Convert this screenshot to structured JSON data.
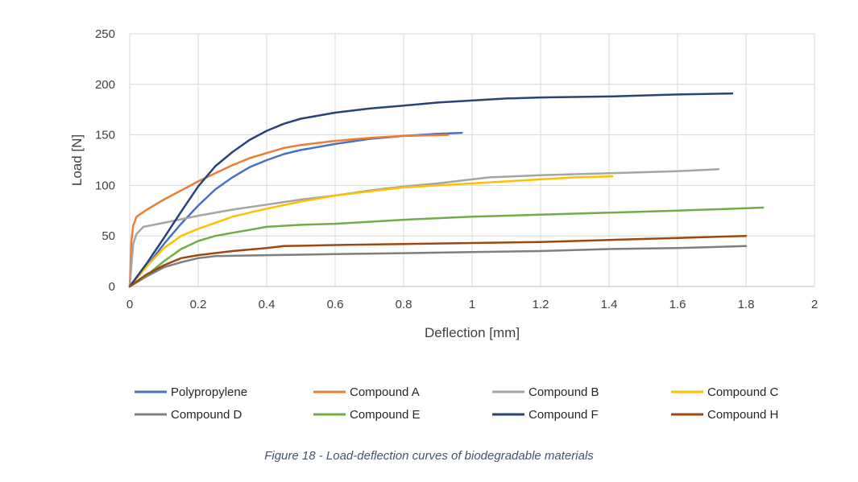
{
  "caption": "Figure 18 - Load-deflection curves of biodegradable materials",
  "chart_data": {
    "type": "line",
    "title": "",
    "xlabel": "Deflection [mm]",
    "ylabel": "Load [N]",
    "xlim": [
      0,
      2
    ],
    "ylim": [
      0,
      250
    ],
    "xticks": [
      "0",
      "0.2",
      "0.4",
      "0.6",
      "0.8",
      "1",
      "1.2",
      "1.4",
      "1.6",
      "1.8",
      "2"
    ],
    "yticks": [
      "0",
      "50",
      "100",
      "150",
      "200",
      "250"
    ],
    "grid": "on",
    "legend_position": "bottom",
    "series": [
      {
        "name": "Polypropylene",
        "color": "#4472c4",
        "x": [
          0,
          0.05,
          0.1,
          0.15,
          0.2,
          0.25,
          0.3,
          0.35,
          0.4,
          0.45,
          0.5,
          0.55,
          0.6,
          0.7,
          0.8,
          0.9,
          0.97
        ],
        "y": [
          0,
          20,
          42,
          62,
          80,
          96,
          108,
          118,
          125,
          131,
          135,
          138,
          141,
          146,
          149,
          151,
          152
        ]
      },
      {
        "name": "Compound A",
        "color": "#ed7d31",
        "x": [
          0,
          0.005,
          0.01,
          0.02,
          0.05,
          0.1,
          0.15,
          0.2,
          0.25,
          0.3,
          0.35,
          0.4,
          0.45,
          0.5,
          0.6,
          0.7,
          0.8,
          0.93
        ],
        "y": [
          0,
          45,
          60,
          69,
          76,
          86,
          95,
          104,
          112,
          120,
          127,
          132,
          137,
          140,
          144,
          147,
          149,
          150
        ]
      },
      {
        "name": "Compound B",
        "color": "#a5a5a5",
        "x": [
          0,
          0.01,
          0.02,
          0.04,
          0.1,
          0.2,
          0.3,
          0.4,
          0.5,
          0.6,
          0.7,
          0.8,
          0.9,
          1.0,
          1.05,
          1.2,
          1.4,
          1.6,
          1.72
        ],
        "y": [
          0,
          42,
          52,
          59,
          63,
          70,
          76,
          81,
          86,
          90,
          95,
          99,
          102,
          106,
          108,
          110,
          112,
          114,
          116
        ]
      },
      {
        "name": "Compound C",
        "color": "#ffc000",
        "x": [
          0,
          0.05,
          0.1,
          0.15,
          0.2,
          0.25,
          0.3,
          0.4,
          0.5,
          0.6,
          0.7,
          0.8,
          0.9,
          1.0,
          1.1,
          1.2,
          1.3,
          1.41
        ],
        "y": [
          0,
          20,
          38,
          50,
          57,
          63,
          69,
          77,
          84,
          90,
          94,
          98,
          100,
          102,
          104,
          106,
          108,
          109
        ]
      },
      {
        "name": "Compound D",
        "color": "#7f7f7f",
        "x": [
          0,
          0.05,
          0.1,
          0.15,
          0.2,
          0.25,
          0.4,
          0.6,
          0.8,
          1.0,
          1.2,
          1.4,
          1.6,
          1.8
        ],
        "y": [
          0,
          10,
          19,
          24,
          28,
          30,
          31,
          32,
          33,
          34,
          35,
          37,
          38,
          40
        ]
      },
      {
        "name": "Compound E",
        "color": "#70ad47",
        "x": [
          0,
          0.05,
          0.1,
          0.15,
          0.2,
          0.25,
          0.3,
          0.35,
          0.4,
          0.5,
          0.6,
          0.8,
          1.0,
          1.2,
          1.4,
          1.6,
          1.85
        ],
        "y": [
          0,
          11,
          25,
          37,
          45,
          50,
          53,
          56,
          59,
          61,
          62,
          66,
          69,
          71,
          73,
          75,
          78
        ]
      },
      {
        "name": "Compound F",
        "color": "#264478",
        "x": [
          0,
          0.05,
          0.1,
          0.15,
          0.2,
          0.25,
          0.3,
          0.35,
          0.4,
          0.45,
          0.5,
          0.6,
          0.7,
          0.8,
          0.9,
          1.0,
          1.1,
          1.2,
          1.4,
          1.6,
          1.76
        ],
        "y": [
          0,
          23,
          48,
          74,
          99,
          119,
          133,
          145,
          154,
          161,
          166,
          172,
          176,
          179,
          182,
          184,
          186,
          187,
          188,
          190,
          191
        ]
      },
      {
        "name": "Compound H",
        "color": "#9e480e",
        "x": [
          0,
          0.05,
          0.1,
          0.15,
          0.2,
          0.3,
          0.4,
          0.45,
          0.6,
          0.8,
          1.0,
          1.2,
          1.4,
          1.6,
          1.8
        ],
        "y": [
          0,
          12,
          21,
          28,
          31,
          35,
          38,
          40,
          41,
          42,
          43,
          44,
          46,
          48,
          50
        ]
      }
    ]
  }
}
